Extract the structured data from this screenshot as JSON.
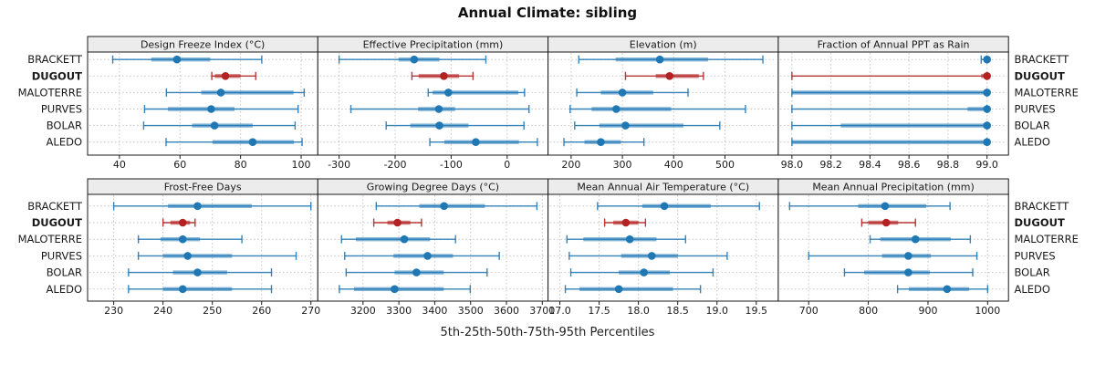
{
  "title": "Annual Climate: sibling",
  "xlabel": "5th-25th-50th-75th-95th Percentiles",
  "sites": [
    "BRACKETT",
    "DUGOUT",
    "MALOTERRE",
    "PURVES",
    "BOLAR",
    "ALEDO"
  ],
  "highlight_site": "DUGOUT",
  "colors": {
    "blue": "#1f77b4",
    "blue_band": "rgba(31,119,180,0.55)",
    "blue_line": "rgba(31,119,180,0.9)",
    "red": "#b22222",
    "red_band": "rgba(178,34,34,0.6)",
    "red_line": "rgba(178,34,34,0.9)",
    "strip_bg": "#ececec",
    "grid": "#c3c3c3",
    "border": "#1a1a1a"
  },
  "chart_data": {
    "type": "trellis-dotplot",
    "percentile_labels": [
      "5th",
      "25th",
      "50th",
      "75th",
      "95th"
    ],
    "site_order": [
      "BRACKETT",
      "DUGOUT",
      "MALOTERRE",
      "PURVES",
      "BOLAR",
      "ALEDO"
    ],
    "panels": [
      {
        "title": "Design Freeze Index (°C)",
        "grid_row": 0,
        "domain": [
          29.5,
          105.5
        ],
        "ticks": [
          40,
          60,
          80,
          100
        ],
        "tick_labels": [
          "40",
          "60",
          "80",
          "100"
        ],
        "series": [
          [
            37.8,
            50.5,
            59,
            70,
            87
          ],
          [
            70.5,
            71.5,
            75,
            80,
            85
          ],
          [
            55.5,
            67,
            73.5,
            97.5,
            101
          ],
          [
            48.3,
            56,
            70.3,
            78,
            99
          ],
          [
            48,
            64,
            71.4,
            84,
            98
          ],
          [
            55.4,
            70.7,
            84,
            97.6,
            100.3
          ]
        ]
      },
      {
        "title": "Effective Precipitation (mm)",
        "grid_row": 0,
        "domain": [
          -338,
          73
        ],
        "ticks": [
          -300,
          -200,
          -100,
          0
        ],
        "tick_labels": [
          "-300",
          "-200",
          "-100",
          "0"
        ],
        "series": [
          [
            -300,
            -194,
            -166,
            -121,
            -38
          ],
          [
            -170,
            -158,
            -113,
            -86,
            -61
          ],
          [
            -141,
            -133,
            -105,
            20,
            31
          ],
          [
            -279,
            -159,
            -122,
            -93,
            39
          ],
          [
            -216,
            -173,
            -121,
            -69,
            30
          ],
          [
            -138,
            -112,
            -56,
            21,
            54
          ]
        ]
      },
      {
        "title": "Elevation (m)",
        "grid_row": 0,
        "domain": [
          155,
          604
        ],
        "ticks": [
          200,
          300,
          400,
          500
        ],
        "tick_labels": [
          "200",
          "300",
          "400",
          "500"
        ],
        "series": [
          [
            215,
            287,
            373,
            467,
            574
          ],
          [
            306,
            365,
            392,
            449,
            458
          ],
          [
            211,
            258,
            300,
            360,
            428
          ],
          [
            198,
            240,
            288,
            395,
            540
          ],
          [
            207,
            255,
            306,
            419,
            490
          ],
          [
            186,
            226,
            258,
            297,
            342
          ]
        ]
      },
      {
        "title": "Fraction of Annual PPT as Rain",
        "grid_row": 0,
        "domain": [
          97.93,
          99.11
        ],
        "ticks": [
          98.0,
          98.2,
          98.4,
          98.6,
          98.8,
          99.0
        ],
        "tick_labels": [
          "98.0",
          "98.2",
          "98.4",
          "98.6",
          "98.8",
          "99.0"
        ],
        "series": [
          [
            98.97,
            98.99,
            99.0,
            99.0,
            99.0
          ],
          [
            98.0,
            98.97,
            99.0,
            99.0,
            99.0
          ],
          [
            98.0,
            98.0,
            99.0,
            99.0,
            99.0
          ],
          [
            98.0,
            98.9,
            99.0,
            99.0,
            99.0
          ],
          [
            98.0,
            98.25,
            99.0,
            99.0,
            99.0
          ],
          [
            98.0,
            98.0,
            99.0,
            99.0,
            99.0
          ]
        ]
      },
      {
        "title": "Frost-Free Days",
        "grid_row": 1,
        "domain": [
          224.7,
          271.4
        ],
        "ticks": [
          230,
          240,
          250,
          260,
          270
        ],
        "tick_labels": [
          "230",
          "240",
          "250",
          "260",
          "270"
        ],
        "series": [
          [
            230,
            241,
            247,
            258,
            270
          ],
          [
            240,
            241.5,
            244,
            245.5,
            246.5
          ],
          [
            235,
            239.5,
            244,
            247.5,
            256
          ],
          [
            235,
            240,
            245,
            254,
            267
          ],
          [
            233,
            242,
            247,
            253,
            262
          ],
          [
            233,
            240,
            244,
            254,
            262
          ]
        ]
      },
      {
        "title": "Growing Degree Days (°C)",
        "grid_row": 1,
        "domain": [
          3074,
          3716
        ],
        "ticks": [
          3200,
          3300,
          3400,
          3500,
          3600,
          3700
        ],
        "tick_labels": [
          "3200",
          "3300",
          "3400",
          "3500",
          "3600",
          "3700"
        ],
        "series": [
          [
            3237,
            3357,
            3426,
            3540,
            3685
          ],
          [
            3230,
            3268,
            3296,
            3332,
            3363
          ],
          [
            3140,
            3180,
            3315,
            3387,
            3458
          ],
          [
            3149,
            3285,
            3380,
            3451,
            3580
          ],
          [
            3153,
            3288,
            3349,
            3425,
            3546
          ],
          [
            3134,
            3175,
            3288,
            3425,
            3499
          ]
        ]
      },
      {
        "title": "Mean Annual Air Temperature (°C)",
        "grid_row": 1,
        "domain": [
          16.85,
          19.78
        ],
        "ticks": [
          17.0,
          17.5,
          18.0,
          18.5,
          19.0,
          19.5
        ],
        "tick_labels": [
          "17.0",
          "17.5",
          "18.0",
          "18.5",
          "19.0",
          "19.5"
        ],
        "series": [
          [
            17.48,
            18.05,
            18.33,
            18.92,
            19.54
          ],
          [
            17.57,
            17.68,
            17.84,
            18.0,
            18.09
          ],
          [
            17.09,
            17.3,
            17.89,
            18.23,
            18.6
          ],
          [
            17.12,
            17.78,
            18.17,
            18.5,
            19.13
          ],
          [
            17.14,
            17.75,
            18.07,
            18.4,
            18.95
          ],
          [
            17.07,
            17.25,
            17.75,
            18.44,
            18.79
          ]
        ]
      },
      {
        "title": "Mean Annual Precipitation (mm)",
        "grid_row": 1,
        "domain": [
          649,
          1035
        ],
        "ticks": [
          700,
          800,
          900,
          1000
        ],
        "tick_labels": [
          "700",
          "800",
          "900",
          "1000"
        ],
        "series": [
          [
            668,
            783,
            828,
            897,
            937
          ],
          [
            789,
            800,
            830,
            850,
            879
          ],
          [
            803,
            820,
            879,
            938,
            971
          ],
          [
            700,
            823,
            867,
            905,
            982
          ],
          [
            760,
            793,
            867,
            903,
            975
          ],
          [
            849,
            868,
            932,
            969,
            1000
          ]
        ]
      }
    ]
  }
}
